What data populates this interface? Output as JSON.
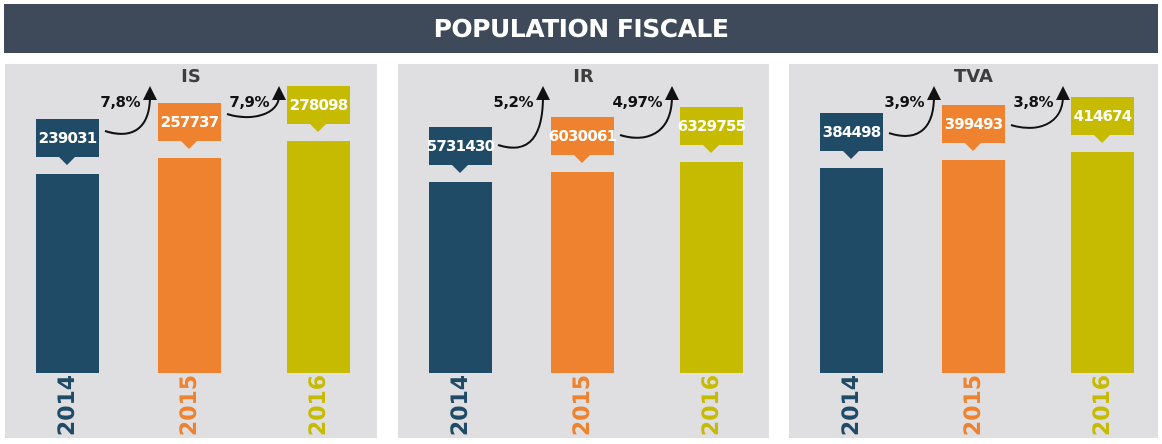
{
  "header": {
    "title": "POPULATION FISCALE"
  },
  "colors": {
    "2014": "#204b66",
    "2015": "#ee822e",
    "2016": "#c6bb00",
    "header_bg": "#3e4a59",
    "panel_bg": "#dfdfe1"
  },
  "chart_data": [
    {
      "type": "bar",
      "title": "IS",
      "categories": [
        "2014",
        "2015",
        "2016"
      ],
      "values": [
        239031,
        257737,
        278098
      ],
      "data_labels": [
        "239031",
        "257737",
        "278098"
      ],
      "growth_labels": [
        "7,8%",
        "7,9%"
      ]
    },
    {
      "type": "bar",
      "title": "IR",
      "categories": [
        "2014",
        "2015",
        "2016"
      ],
      "values": [
        5731430,
        6030061,
        6329755
      ],
      "data_labels": [
        "5731430",
        "6030061",
        "6329755"
      ],
      "growth_labels": [
        "5,2%",
        "4,97%"
      ]
    },
    {
      "type": "bar",
      "title": "TVA",
      "categories": [
        "2014",
        "2015",
        "2016"
      ],
      "values": [
        384498,
        399493,
        414674
      ],
      "data_labels": [
        "384498",
        "399493",
        "414674"
      ],
      "growth_labels": [
        "3,9%",
        "3,8%"
      ]
    }
  ]
}
